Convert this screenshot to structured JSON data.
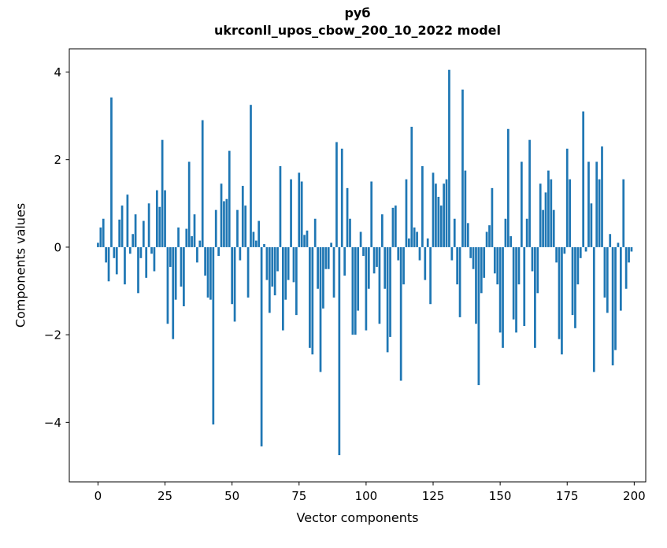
{
  "figure": {
    "background": "#ffffff",
    "text_color": "#000000",
    "title_line1": "руб",
    "title_line2": "ukrconll_upos_cbow_200_10_2022 model"
  },
  "chart_data": {
    "type": "bar",
    "title": "руб",
    "subtitle": "ukrconll_upos_cbow_200_10_2022 model",
    "xlabel": "Vector components",
    "ylabel": "Components values",
    "bar_color": "#1f77b4",
    "grid": false,
    "legend": null,
    "xlim": [
      -10.7,
      204.3
    ],
    "ylim": [
      -5.36,
      4.53
    ],
    "x_ticks": [
      0,
      25,
      50,
      75,
      100,
      125,
      150,
      175,
      200
    ],
    "x_tick_labels": [
      "0",
      "25",
      "50",
      "75",
      "100",
      "125",
      "150",
      "175",
      "200"
    ],
    "y_ticks": [
      4,
      2,
      0,
      -2,
      -4
    ],
    "y_tick_labels": [
      "4",
      "2",
      "0",
      "−2",
      "−4"
    ],
    "x": "0..199 (component index)",
    "values": [
      0.1,
      0.45,
      0.65,
      -0.35,
      -0.78,
      3.42,
      -0.25,
      -0.62,
      0.63,
      0.95,
      -0.85,
      1.2,
      -0.15,
      0.3,
      0.75,
      -1.05,
      -0.25,
      0.6,
      -0.7,
      1.0,
      -0.15,
      -0.55,
      1.3,
      0.92,
      2.45,
      1.3,
      -1.75,
      -0.45,
      -2.1,
      -1.2,
      0.45,
      -0.9,
      -1.35,
      0.42,
      1.95,
      0.25,
      0.75,
      -0.35,
      0.15,
      2.9,
      -0.65,
      -1.15,
      -1.2,
      -4.05,
      0.85,
      -0.2,
      1.45,
      1.05,
      1.1,
      2.2,
      -1.3,
      -1.7,
      0.85,
      -0.3,
      1.4,
      0.95,
      -1.15,
      3.25,
      0.35,
      0.15,
      0.6,
      -4.55,
      0.07,
      -0.75,
      -1.5,
      -0.9,
      -1.1,
      -0.55,
      1.85,
      -1.9,
      -1.2,
      -0.75,
      1.55,
      -0.8,
      -1.55,
      1.7,
      1.5,
      0.28,
      0.38,
      -2.3,
      -2.45,
      0.65,
      -0.95,
      -2.85,
      -1.4,
      -0.5,
      -0.5,
      0.1,
      -1.15,
      2.4,
      -4.75,
      2.25,
      -0.65,
      1.35,
      0.65,
      -2.0,
      -2.0,
      -1.45,
      0.35,
      -0.2,
      -1.9,
      -0.95,
      1.5,
      -0.6,
      -0.45,
      -1.75,
      0.75,
      -0.95,
      -2.4,
      -2.05,
      0.9,
      0.95,
      -0.3,
      -3.05,
      -0.85,
      1.55,
      0.2,
      2.75,
      0.45,
      0.35,
      -0.3,
      1.85,
      -0.75,
      0.2,
      -1.3,
      1.7,
      1.45,
      1.15,
      0.95,
      1.45,
      1.55,
      4.05,
      -0.3,
      0.65,
      -0.85,
      -1.6,
      3.6,
      1.75,
      0.55,
      -0.25,
      -0.5,
      -1.75,
      -3.15,
      -1.05,
      -0.7,
      0.35,
      0.5,
      1.35,
      -0.6,
      -0.85,
      -1.95,
      -2.3,
      0.65,
      2.7,
      0.25,
      -1.65,
      -1.95,
      -0.85,
      1.95,
      -1.8,
      0.65,
      2.45,
      -0.55,
      -2.3,
      -1.05,
      1.45,
      0.85,
      1.25,
      1.75,
      1.55,
      0.85,
      -0.35,
      -2.1,
      -2.45,
      -0.15,
      2.25,
      1.55,
      -1.55,
      -1.85,
      -0.85,
      -0.25,
      3.1,
      -0.1,
      1.95,
      1.0,
      -2.85,
      1.95,
      1.55,
      2.3,
      -1.15,
      -1.5,
      0.3,
      -2.7,
      -2.35,
      0.1,
      -1.45,
      1.55,
      -0.95,
      -0.35,
      -0.1
    ]
  }
}
